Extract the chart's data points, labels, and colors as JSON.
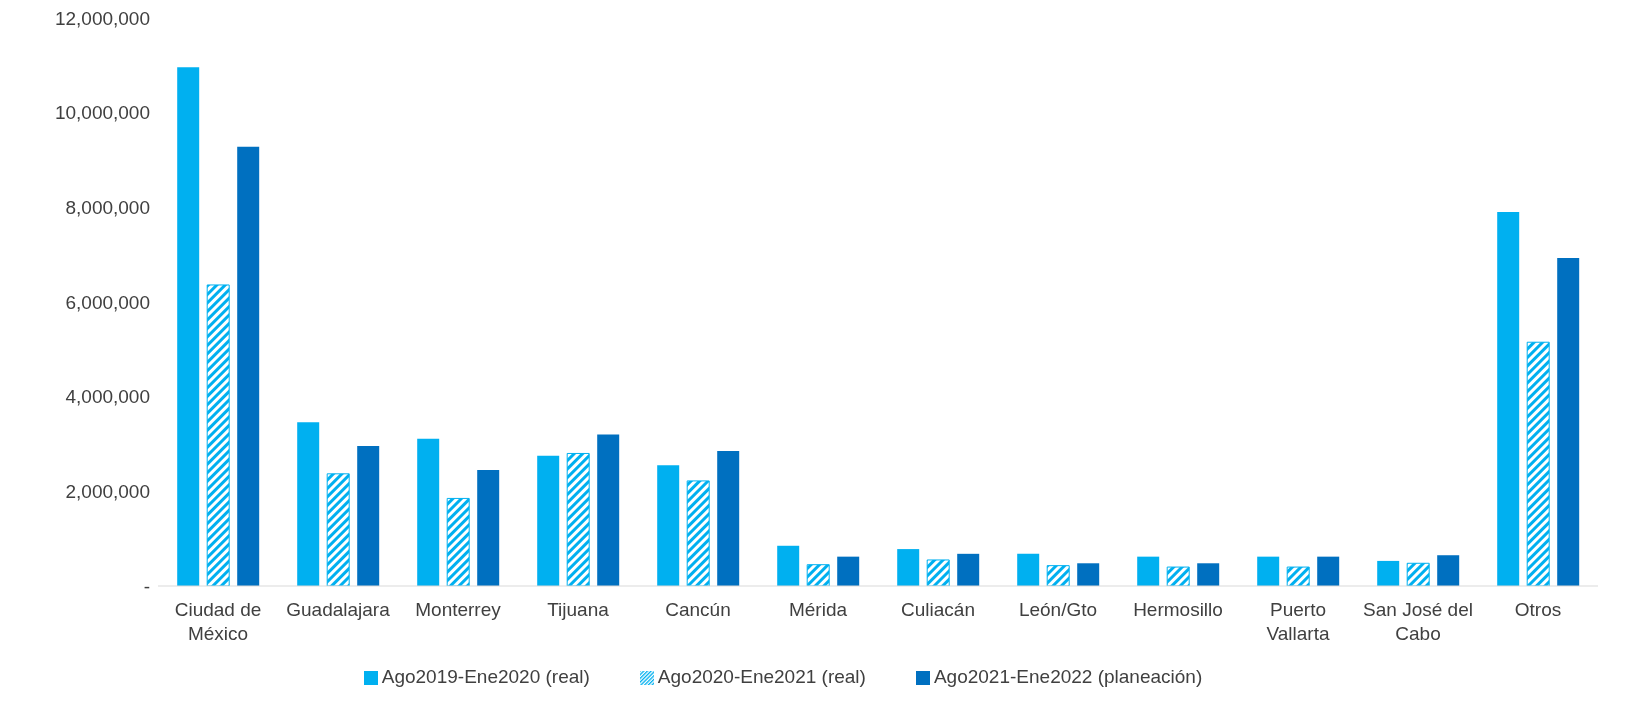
{
  "chart_data": {
    "type": "bar",
    "categories": [
      "Ciudad de México",
      "Guadalajara",
      "Monterrey",
      "Tijuana",
      "Cancún",
      "Mérida",
      "Culiacán",
      "León/Gto",
      "Hermosillo",
      "Puerto Vallarta",
      "San José del Cabo",
      "Otros"
    ],
    "series": [
      {
        "name": "Ago2019-Ene2020 (real)",
        "color": "#00b0f0",
        "values": [
          10960000,
          3460000,
          3110000,
          2750000,
          2550000,
          850000,
          780000,
          680000,
          620000,
          620000,
          530000,
          7900000
        ]
      },
      {
        "name": "Ago2020-Ene2021 (real)",
        "color": "#00b0f0",
        "values": [
          6360000,
          2370000,
          1850000,
          2800000,
          2220000,
          450000,
          550000,
          430000,
          400000,
          400000,
          480000,
          5150000
        ]
      },
      {
        "name": "Ago2021-Ene2022 (planeación)",
        "color": "#0070c0",
        "values": [
          9280000,
          2960000,
          2450000,
          3200000,
          2850000,
          620000,
          680000,
          480000,
          480000,
          620000,
          650000,
          6930000
        ]
      }
    ],
    "ylim": [
      0,
      12000000
    ],
    "yticks": [
      {
        "value": 0,
        "label": "-"
      },
      {
        "value": 2000000,
        "label": "2,000,000"
      },
      {
        "value": 4000000,
        "label": "4,000,000"
      },
      {
        "value": 6000000,
        "label": "6,000,000"
      },
      {
        "value": 8000000,
        "label": "8,000,000"
      },
      {
        "value": 10000000,
        "label": "10,000,000"
      },
      {
        "value": 12000000,
        "label": "12,000,000"
      }
    ],
    "grid": false,
    "legend": "bottom"
  }
}
